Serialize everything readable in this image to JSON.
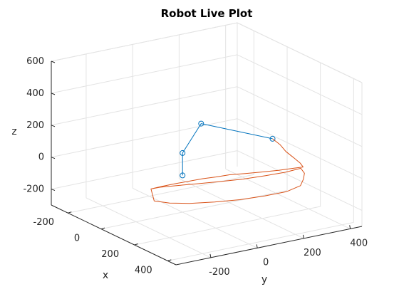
{
  "chart_data": {
    "type": "line3d",
    "title": "Robot Live Plot",
    "xlabel": "x",
    "ylabel": "y",
    "zlabel": "z",
    "xlim": [
      -300,
      450
    ],
    "ylim": [
      -350,
      450
    ],
    "zlim": [
      -300,
      600
    ],
    "xticks": [
      -200,
      0,
      200,
      400
    ],
    "yticks": [
      -200,
      0,
      200,
      400
    ],
    "zticks": [
      -200,
      0,
      200,
      400,
      600
    ],
    "grid": true,
    "series": [
      {
        "color": "#0072BD",
        "marker": "o",
        "points": [
          [
            0,
            0,
            -70
          ],
          [
            0,
            0,
            70
          ],
          [
            0,
            80,
            230
          ],
          [
            150,
            280,
            150
          ]
        ]
      },
      {
        "color": "#D95319",
        "marker": "none",
        "points": [
          [
            150,
            280,
            150
          ],
          [
            175,
            295,
            120
          ],
          [
            195,
            305,
            85
          ],
          [
            220,
            320,
            55
          ],
          [
            240,
            335,
            25
          ],
          [
            250,
            340,
            5
          ],
          [
            230,
            315,
            -5
          ],
          [
            200,
            270,
            -20
          ],
          [
            170,
            220,
            -30
          ],
          [
            140,
            170,
            -40
          ],
          [
            115,
            120,
            -45
          ],
          [
            95,
            75,
            -55
          ],
          [
            80,
            30,
            -60
          ],
          [
            70,
            -20,
            -65
          ],
          [
            60,
            -70,
            -70
          ],
          [
            52,
            -120,
            -75
          ],
          [
            48,
            -170,
            -80
          ],
          [
            60,
            -140,
            -72
          ],
          [
            90,
            -90,
            -62
          ],
          [
            125,
            -30,
            -52
          ],
          [
            160,
            40,
            -42
          ],
          [
            195,
            120,
            -32
          ],
          [
            220,
            200,
            -22
          ],
          [
            240,
            270,
            -12
          ],
          [
            250,
            330,
            0
          ],
          [
            265,
            335,
            -25
          ],
          [
            280,
            320,
            -50
          ],
          [
            290,
            300,
            -80
          ],
          [
            275,
            250,
            -110
          ],
          [
            245,
            180,
            -130
          ],
          [
            205,
            100,
            -150
          ],
          [
            165,
            20,
            -160
          ],
          [
            125,
            -60,
            -165
          ],
          [
            90,
            -120,
            -162
          ],
          [
            60,
            -165,
            -150
          ],
          [
            48,
            -170,
            -80
          ]
        ]
      }
    ]
  }
}
